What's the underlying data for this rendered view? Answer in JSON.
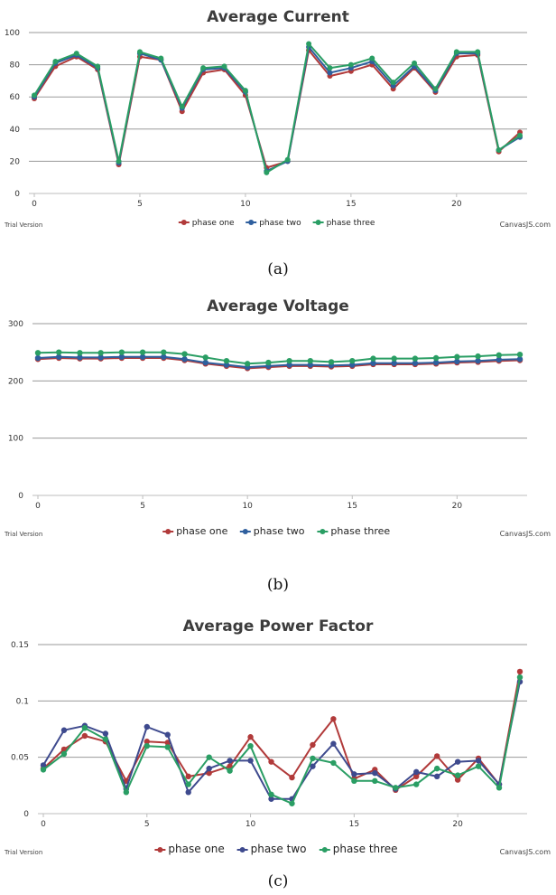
{
  "chart_data": [
    {
      "type": "line",
      "title": "Average Current",
      "x": [
        0,
        1,
        2,
        3,
        4,
        5,
        6,
        7,
        8,
        9,
        10,
        11,
        12,
        13,
        14,
        15,
        16,
        17,
        18,
        19,
        20,
        21,
        22,
        23
      ],
      "xticks": [
        0,
        5,
        10,
        15,
        20
      ],
      "ylim": [
        0,
        100
      ],
      "yticks": [
        0,
        20,
        40,
        60,
        80,
        100
      ],
      "grid": true,
      "legend": "bottom-center",
      "series": [
        {
          "name": "phase one",
          "color": "#b13a3a",
          "values": [
            59,
            79,
            85,
            77,
            18,
            85,
            83,
            51,
            75,
            77,
            61,
            16,
            20,
            89,
            73,
            76,
            80,
            65,
            78,
            63,
            85,
            86,
            26,
            38
          ]
        },
        {
          "name": "phase two",
          "color": "#2f5f9e",
          "values": [
            60,
            81,
            86,
            78,
            19,
            87,
            83,
            53,
            77,
            78,
            63,
            14,
            20,
            91,
            75,
            78,
            82,
            67,
            79,
            64,
            87,
            87,
            27,
            35
          ]
        },
        {
          "name": "phase three",
          "color": "#2a9e64",
          "values": [
            61,
            82,
            87,
            79,
            20,
            88,
            84,
            54,
            78,
            79,
            64,
            13,
            21,
            93,
            78,
            80,
            84,
            69,
            81,
            65,
            88,
            88,
            27,
            36
          ]
        }
      ],
      "footer_left": "Trial Version",
      "footer_right": "CanvasJS.com",
      "caption": "(a)"
    },
    {
      "type": "line",
      "title": "Average Voltage",
      "x": [
        0,
        1,
        2,
        3,
        4,
        5,
        6,
        7,
        8,
        9,
        10,
        11,
        12,
        13,
        14,
        15,
        16,
        17,
        18,
        19,
        20,
        21,
        22,
        23
      ],
      "xticks": [
        0,
        5,
        10,
        15,
        20
      ],
      "ylim": [
        0,
        300
      ],
      "yticks": [
        0,
        100,
        200,
        300
      ],
      "grid": true,
      "legend": "bottom-center",
      "series": [
        {
          "name": "phase one",
          "color": "#b13a3a",
          "values": [
            238,
            240,
            239,
            239,
            240,
            240,
            240,
            236,
            230,
            226,
            222,
            224,
            226,
            226,
            225,
            226,
            229,
            229,
            229,
            230,
            232,
            233,
            235,
            236
          ]
        },
        {
          "name": "phase two",
          "color": "#2f5f9e",
          "values": [
            240,
            242,
            241,
            241,
            242,
            242,
            242,
            238,
            232,
            228,
            224,
            226,
            228,
            228,
            227,
            228,
            231,
            231,
            231,
            232,
            234,
            235,
            237,
            238
          ]
        },
        {
          "name": "phase three",
          "color": "#2a9e64",
          "values": [
            249,
            250,
            249,
            249,
            250,
            250,
            250,
            247,
            241,
            235,
            230,
            232,
            235,
            235,
            233,
            235,
            239,
            239,
            239,
            240,
            242,
            243,
            245,
            246
          ]
        }
      ],
      "footer_left": "Trial Version",
      "footer_right": "CanvasJS.com",
      "caption": "(b)"
    },
    {
      "type": "line",
      "title": "Average Power Factor",
      "x": [
        0,
        1,
        2,
        3,
        4,
        5,
        6,
        7,
        8,
        9,
        10,
        11,
        12,
        13,
        14,
        15,
        16,
        17,
        18,
        19,
        20,
        21,
        22,
        23
      ],
      "xticks": [
        0,
        5,
        10,
        15,
        20
      ],
      "ylim": [
        0,
        0.15
      ],
      "yticks": [
        0,
        0.05,
        0.1,
        0.15
      ],
      "ytick_labels": [
        "0",
        "0.05",
        "0.1",
        "0.15"
      ],
      "grid": true,
      "legend": "bottom-center",
      "series": [
        {
          "name": "phase one",
          "color": "#b13a3a",
          "values": [
            0.04,
            0.057,
            0.069,
            0.064,
            0.029,
            0.064,
            0.063,
            0.033,
            0.036,
            0.042,
            0.068,
            0.046,
            0.032,
            0.061,
            0.084,
            0.031,
            0.039,
            0.021,
            0.033,
            0.051,
            0.03,
            0.049,
            0.026,
            0.126
          ]
        },
        {
          "name": "phase two",
          "color": "#3e4a8e",
          "values": [
            0.043,
            0.074,
            0.078,
            0.071,
            0.022,
            0.077,
            0.07,
            0.019,
            0.04,
            0.047,
            0.047,
            0.013,
            0.013,
            0.042,
            0.062,
            0.035,
            0.036,
            0.022,
            0.037,
            0.033,
            0.046,
            0.047,
            0.026,
            0.117
          ]
        },
        {
          "name": "phase three",
          "color": "#2a9e64",
          "values": [
            0.039,
            0.053,
            0.076,
            0.066,
            0.019,
            0.06,
            0.059,
            0.026,
            0.05,
            0.038,
            0.06,
            0.017,
            0.009,
            0.049,
            0.045,
            0.029,
            0.029,
            0.023,
            0.026,
            0.04,
            0.034,
            0.042,
            0.023,
            0.121
          ]
        }
      ],
      "footer_left": "Trial Version",
      "footer_right": "CanvasJS.com",
      "caption": "(c)"
    }
  ]
}
